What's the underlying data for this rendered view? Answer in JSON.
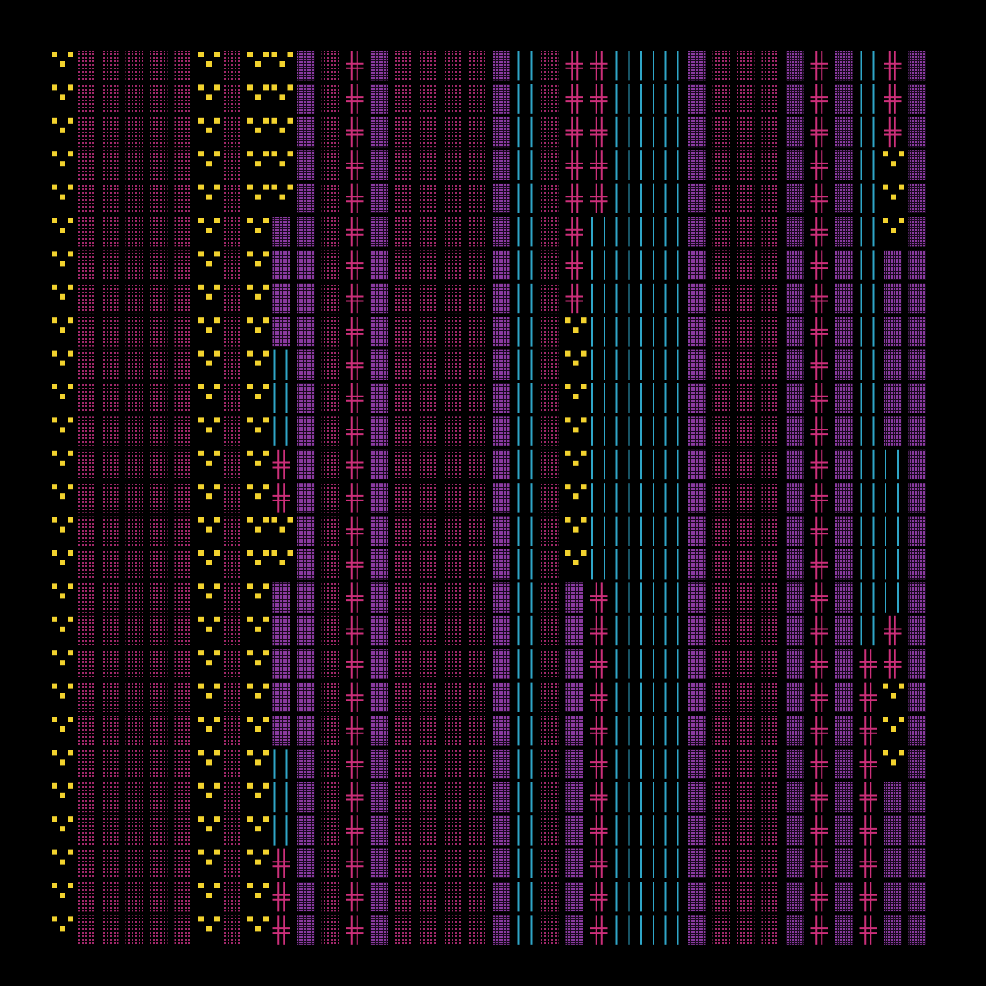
{
  "artwork": {
    "kind": "generative tile pattern",
    "grid": {
      "columns": 36,
      "rows": 27
    },
    "palette": {
      "background": "#000000",
      "yellow": "#f2d22e",
      "magenta": "#cc2f7a",
      "magenta_dark": "#7c1e55",
      "purple": "#8b3aa0",
      "cyan": "#2fa6c8"
    },
    "column_patterns": [
      "yellow-dots",
      "magenta-dots",
      "magenta-dots",
      "magenta-dots",
      "magenta-dots",
      "magenta-dots",
      "yellow-dots",
      "magenta-dots",
      "yellow-dots",
      "mixed-yellow-purple-cyan-cross",
      "purple-dots",
      "magenta-dots",
      "magenta-cross",
      "purple-dots",
      "magenta-dots",
      "magenta-dots",
      "magenta-dots",
      "magenta-dots",
      "purple-dots",
      "cyan-lines",
      "magenta-dots",
      "mixed-cross-yellow-purple",
      "mixed-cross-cyan",
      "cyan-lines",
      "cyan-lines",
      "cyan-lines",
      "purple-dots",
      "magenta-dots",
      "magenta-dots",
      "magenta-dots",
      "purple-dots",
      "magenta-cross",
      "purple-dots",
      "mixed-cyan-cross",
      "mixed-cross-yellow-cyan",
      "purple-dots"
    ]
  }
}
